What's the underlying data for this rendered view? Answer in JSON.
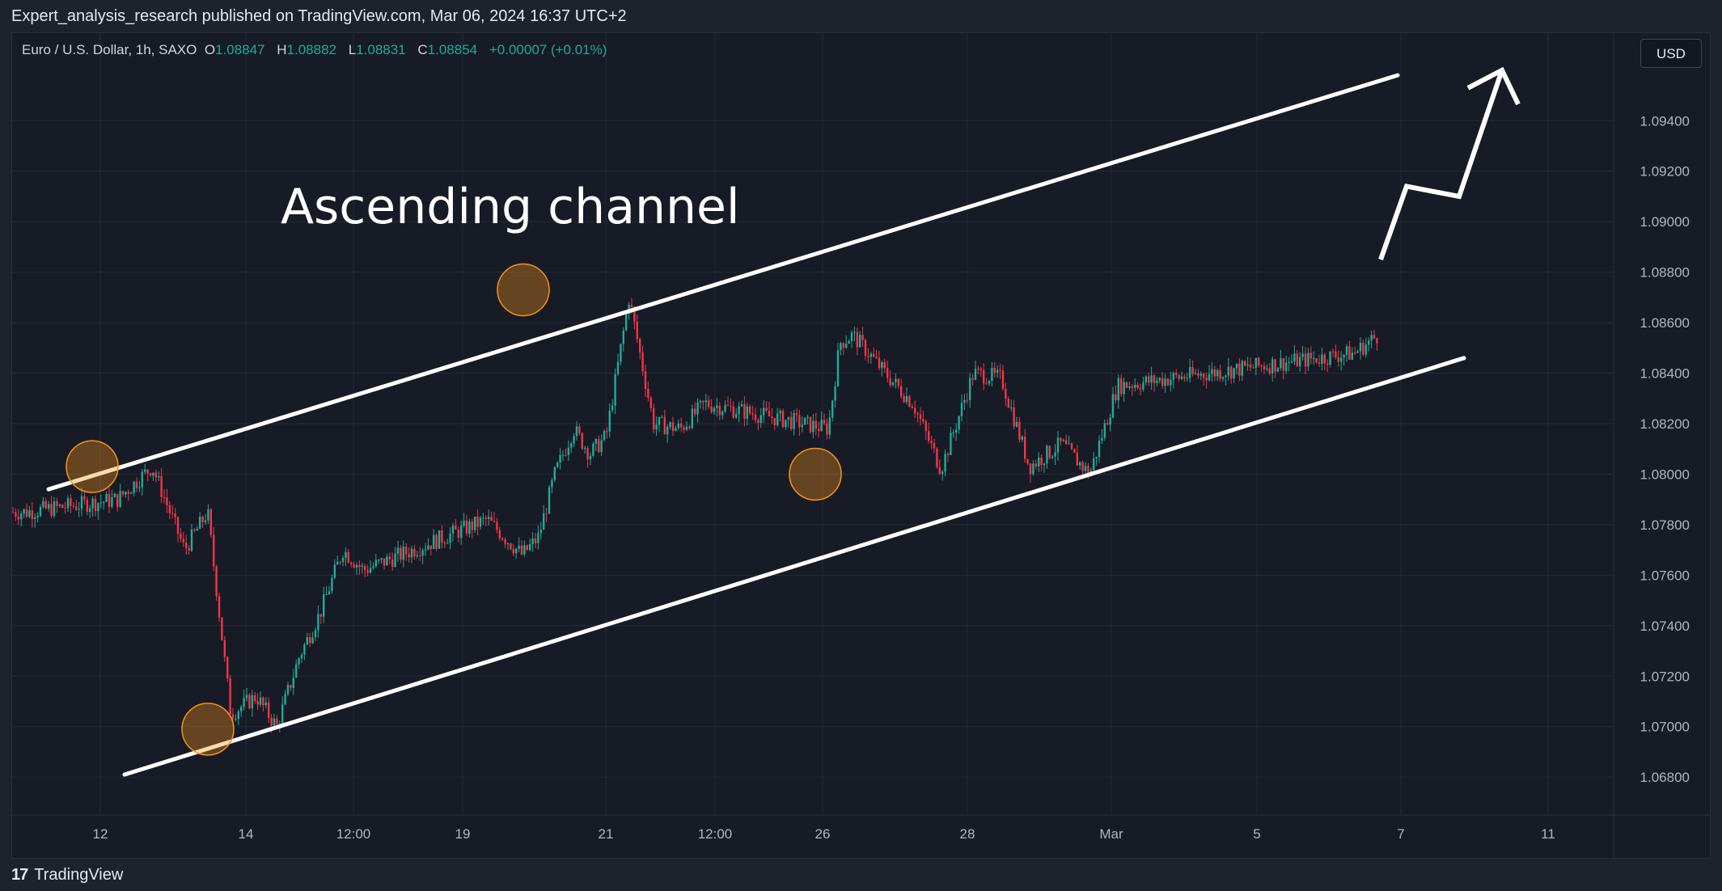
{
  "header": {
    "published_text": "Expert_analysis_research published on TradingView.com, Mar 06, 2024 16:37 UTC+2"
  },
  "legend": {
    "symbol": "Euro / U.S. Dollar, 1h, SAXO",
    "o_label": "O",
    "o_value": "1.08847",
    "h_label": "H",
    "h_value": "1.08882",
    "l_label": "L",
    "l_value": "1.08831",
    "c_label": "C",
    "c_value": "1.08854",
    "change": "+0.00007 (+0.01%)"
  },
  "currency_button": "USD",
  "footer": {
    "logo_text": "TradingView",
    "logo_icon": "tradingview-logo-icon"
  },
  "colors": {
    "up": "#22ab94",
    "down": "#f23645",
    "channel": "#ffffff",
    "touch_circle": "#f7931a",
    "grid": "#262a35",
    "axis_text": "#b2b5be"
  },
  "chart_data": {
    "type": "candlestick",
    "symbol": "EURUSD",
    "timeframe": "1h",
    "annotation": "Ascending channel",
    "ylim": [
      1.0665,
      1.0975
    ],
    "y_ticks": [
      "1.09400",
      "1.09200",
      "1.09000",
      "1.08800",
      "1.08600",
      "1.08400",
      "1.08200",
      "1.08000",
      "1.07800",
      "1.07600",
      "1.07400",
      "1.07200",
      "1.07000",
      "1.06800"
    ],
    "x_ticks": [
      "12",
      "14",
      "12:00",
      "19",
      "21",
      "12:00",
      "26",
      "28",
      "Mar",
      "5",
      "7",
      "11"
    ],
    "price_path": [
      [
        "Feb 09",
        1.0785
      ],
      [
        "Feb 12",
        1.079
      ],
      [
        "Feb 12",
        1.0803
      ],
      [
        "Feb 13",
        1.077
      ],
      [
        "Feb 13",
        1.0785
      ],
      [
        "Feb 13",
        1.0705
      ],
      [
        "Feb 14",
        1.0712
      ],
      [
        "Feb 14",
        1.07
      ],
      [
        "Feb 15",
        1.0728
      ],
      [
        "Feb 15",
        1.0745
      ],
      [
        "Feb 16",
        1.077
      ],
      [
        "Feb 16",
        1.0762
      ],
      [
        "Feb 19",
        1.0782
      ],
      [
        "Feb 20",
        1.0768
      ],
      [
        "Feb 20",
        1.0775
      ],
      [
        "Feb 20",
        1.08
      ],
      [
        "Feb 21",
        1.0818
      ],
      [
        "Feb 21",
        1.0808
      ],
      [
        "Feb 21",
        1.0815
      ],
      [
        "Feb 22",
        1.087
      ],
      [
        "Feb 22",
        1.082
      ],
      [
        "Feb 23",
        1.0818
      ],
      [
        "Feb 23",
        1.0828
      ],
      [
        "Feb 26",
        1.0818
      ],
      [
        "Feb 26",
        1.0852
      ],
      [
        "Feb 27",
        1.0855
      ],
      [
        "Feb 27",
        1.085
      ],
      [
        "Feb 28",
        1.084
      ],
      [
        "Feb 28",
        1.0828
      ],
      [
        "Feb 28",
        1.0802
      ],
      [
        "Feb 29",
        1.084
      ],
      [
        "Feb 29",
        1.0838
      ],
      [
        "Feb 29",
        1.0803
      ],
      [
        "Mar 01",
        1.0812
      ],
      [
        "Mar 01",
        1.08
      ],
      [
        "Mar 01",
        1.0835
      ],
      [
        "Mar 04",
        1.0848
      ],
      [
        "Mar 05",
        1.0862
      ],
      [
        "Mar 05",
        1.0852
      ],
      [
        "Mar 06",
        1.0848
      ],
      [
        "Mar 06",
        1.086
      ],
      [
        "Mar 06",
        1.0845
      ],
      [
        "Mar 06",
        1.0885
      ]
    ],
    "last_price": {
      "close": 1.08854
    },
    "channel": {
      "upper": [
        [
          "Feb 09",
          1.0794
        ],
        [
          "Mar 07",
          1.0958
        ]
      ],
      "lower": [
        [
          "Feb 12",
          1.0681
        ],
        [
          "Mar 08",
          1.0846
        ]
      ]
    },
    "touch_points": [
      {
        "x": "Feb 12",
        "y": 1.0803
      },
      {
        "x": "Feb 14",
        "y": 1.0699
      },
      {
        "x": "Feb 22",
        "y": 1.0873
      },
      {
        "x": "Mar 01",
        "y": 1.08
      }
    ],
    "projection": [
      [
        "Mar 06",
        1.0885
      ],
      [
        "Mar 07",
        1.0914
      ],
      [
        "Mar 07",
        1.091
      ],
      [
        "Mar 08",
        1.096
      ]
    ]
  }
}
